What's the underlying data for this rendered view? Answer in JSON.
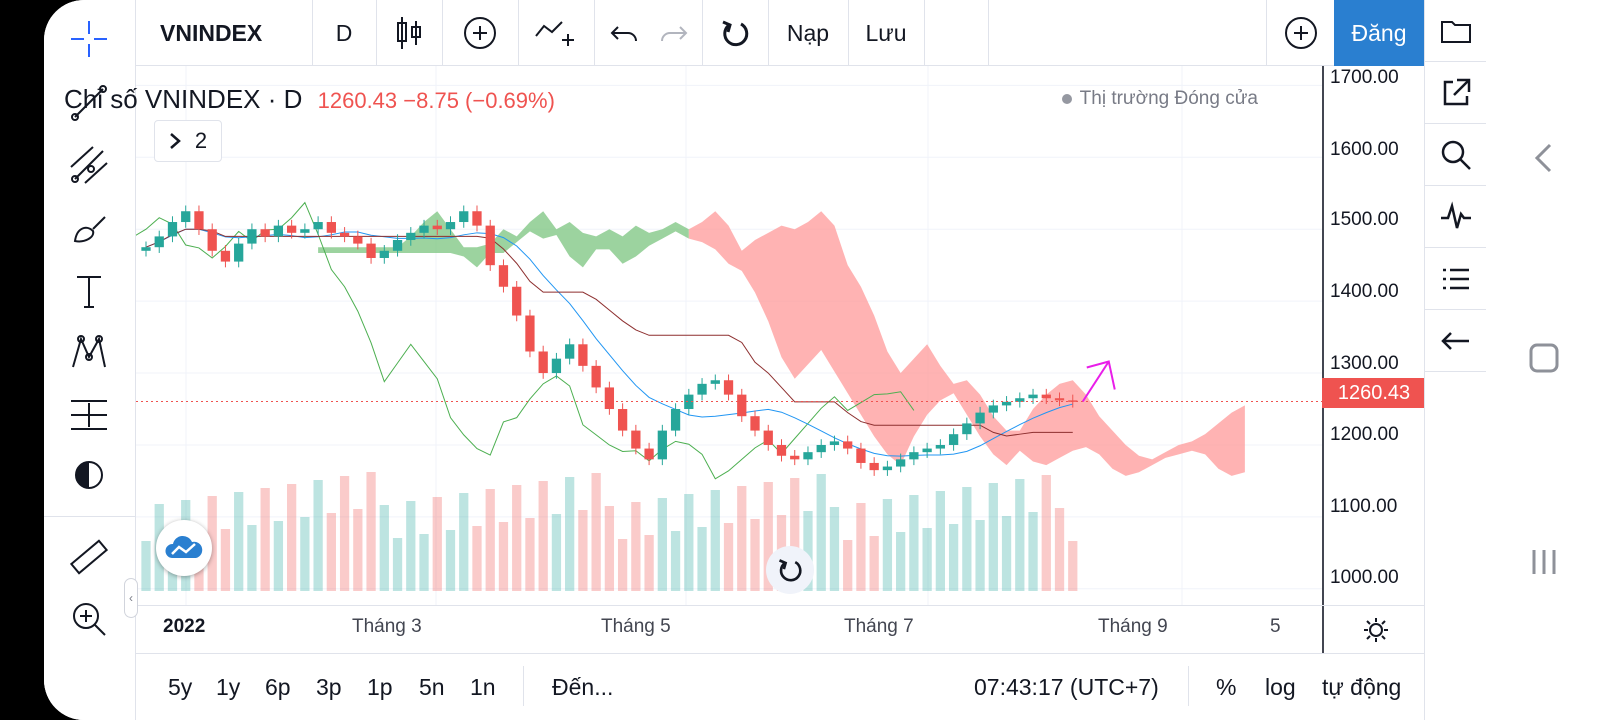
{
  "top_toolbar": {
    "symbol": "VNINDEX",
    "interval": "D",
    "load_label": "Nạp",
    "save_label": "Lưu",
    "signup_label": "Đăng"
  },
  "legend": {
    "title": "Chỉ số VNINDEX · D",
    "price_text": "1260.43  −8.75 (−0.69%)",
    "market_status": "Thị trường Đóng cửa",
    "studies_count": "2"
  },
  "price_axis": {
    "labels": [
      "1700.00",
      "1600.00",
      "1500.00",
      "1400.00",
      "1300.00",
      "1200.00",
      "1100.00",
      "1000.00"
    ],
    "last_price": "1260.43"
  },
  "time_axis": {
    "labels": [
      "2022",
      "Tháng 3",
      "Tháng 5",
      "Tháng 7",
      "Tháng 9",
      "5"
    ]
  },
  "bottom_bar": {
    "ranges": [
      "5y",
      "1y",
      "6p",
      "3p",
      "1p",
      "5n",
      "1n"
    ],
    "goto_label": "Đến...",
    "clock": "07:43:17 (UTC+7)",
    "percent_label": "%",
    "log_label": "log",
    "auto_label": "tự động"
  },
  "colors": {
    "up": "#26a69a",
    "down": "#ef5350",
    "accent": "#2a7fd0",
    "cloud_bull": "#7bc47f",
    "cloud_bear": "#ff9a9a"
  },
  "chart_data": {
    "type": "candlestick",
    "symbol": "VNINDEX",
    "interval": "D",
    "ylim": [
      990,
      1720
    ],
    "last": 1260.43,
    "change": -8.75,
    "change_pct": -0.69,
    "close_path": [
      1475,
      1490,
      1510,
      1525,
      1500,
      1470,
      1455,
      1480,
      1500,
      1490,
      1505,
      1495,
      1500,
      1510,
      1495,
      1490,
      1480,
      1460,
      1470,
      1485,
      1495,
      1505,
      1500,
      1510,
      1525,
      1505,
      1450,
      1420,
      1380,
      1330,
      1300,
      1320,
      1340,
      1310,
      1280,
      1250,
      1220,
      1195,
      1180,
      1220,
      1250,
      1270,
      1285,
      1290,
      1270,
      1240,
      1220,
      1200,
      1185,
      1180,
      1190,
      1200,
      1205,
      1195,
      1175,
      1165,
      1170,
      1180,
      1190,
      1195,
      1200,
      1215,
      1230,
      1245,
      1255,
      1260,
      1265,
      1270,
      1265,
      1262,
      1260
    ]
  }
}
